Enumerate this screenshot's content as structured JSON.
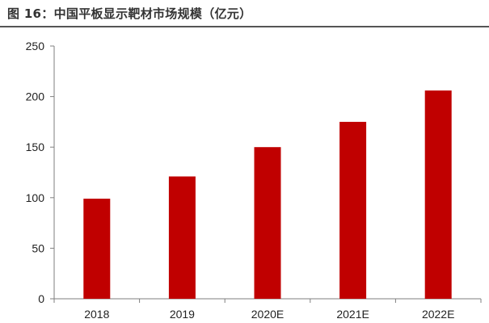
{
  "figure_title": "图 16：中国平板显示靶材市场规模（亿元）",
  "colors": {
    "bar": "#c00000",
    "axis": "#7f7f7f",
    "text": "#222222"
  },
  "chart_data": {
    "type": "bar",
    "title": "",
    "xlabel": "",
    "ylabel": "",
    "categories": [
      "2018",
      "2019",
      "2020E",
      "2021E",
      "2022E"
    ],
    "values": [
      99,
      121,
      150,
      175,
      206
    ],
    "ylim": [
      0,
      250
    ],
    "yticks": [
      0,
      50,
      100,
      150,
      200,
      250
    ],
    "grid": false,
    "legend": "none"
  }
}
